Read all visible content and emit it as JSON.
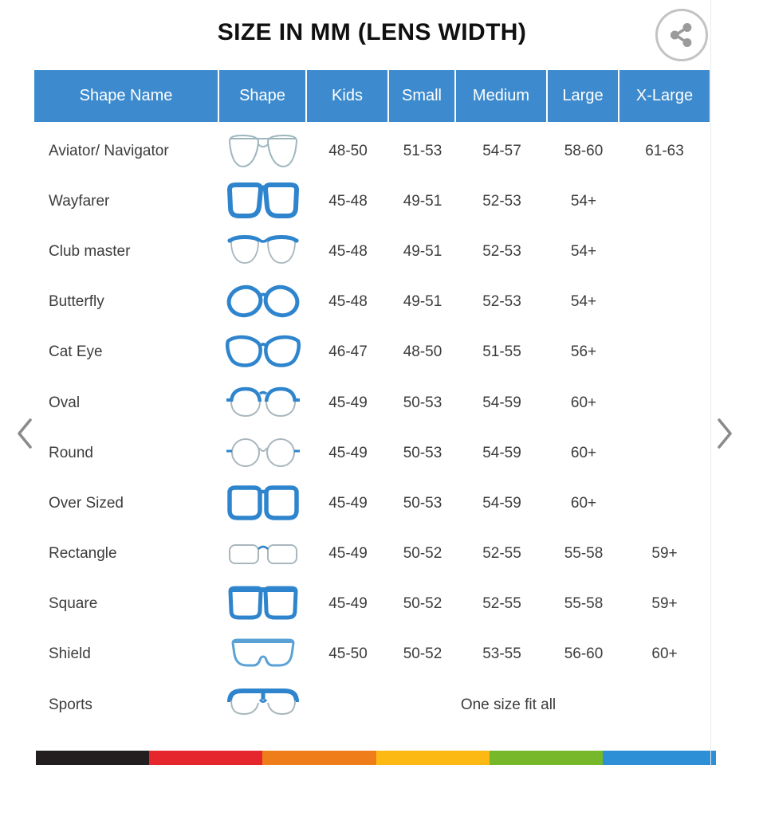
{
  "page": {
    "title": "SIZE IN MM (LENS WIDTH)"
  },
  "icons": {
    "share": "share-icon",
    "prev": "chevron-left-icon",
    "next": "chevron-right-icon"
  },
  "colors": {
    "header_bg": "#3d8bce",
    "header_text": "#ffffff",
    "frame_blue": "#2e85cd",
    "frame_light": "#a9b7bd",
    "stripe": [
      {
        "name": "black",
        "color": "#231f20"
      },
      {
        "name": "red",
        "color": "#e5262c"
      },
      {
        "name": "orange",
        "color": "#ef7d1a"
      },
      {
        "name": "yellow",
        "color": "#fdb913"
      },
      {
        "name": "green",
        "color": "#76b82a"
      },
      {
        "name": "blue",
        "color": "#2d8fd5"
      }
    ]
  },
  "table": {
    "columns": [
      "Shape Name",
      "Shape",
      "Kids",
      "Small",
      "Medium",
      "Large",
      "X-Large"
    ],
    "rows": [
      {
        "name": "Aviator/ Navigator",
        "icon": "aviator-glasses-icon",
        "kids": "48-50",
        "small": "51-53",
        "medium": "54-57",
        "large": "58-60",
        "xlarge": "61-63"
      },
      {
        "name": "Wayfarer",
        "icon": "wayfarer-glasses-icon",
        "kids": "45-48",
        "small": "49-51",
        "medium": "52-53",
        "large": "54+",
        "xlarge": ""
      },
      {
        "name": "Club master",
        "icon": "clubmaster-glasses-icon",
        "kids": "45-48",
        "small": "49-51",
        "medium": "52-53",
        "large": "54+",
        "xlarge": ""
      },
      {
        "name": "Butterfly",
        "icon": "butterfly-glasses-icon",
        "kids": "45-48",
        "small": "49-51",
        "medium": "52-53",
        "large": "54+",
        "xlarge": ""
      },
      {
        "name": "Cat Eye",
        "icon": "cateye-glasses-icon",
        "kids": "46-47",
        "small": "48-50",
        "medium": "51-55",
        "large": "56+",
        "xlarge": ""
      },
      {
        "name": "Oval",
        "icon": "oval-glasses-icon",
        "kids": "45-49",
        "small": "50-53",
        "medium": "54-59",
        "large": "60+",
        "xlarge": ""
      },
      {
        "name": "Round",
        "icon": "round-glasses-icon",
        "kids": "45-49",
        "small": "50-53",
        "medium": "54-59",
        "large": "60+",
        "xlarge": ""
      },
      {
        "name": "Over Sized",
        "icon": "oversized-glasses-icon",
        "kids": "45-49",
        "small": "50-53",
        "medium": "54-59",
        "large": "60+",
        "xlarge": ""
      },
      {
        "name": "Rectangle",
        "icon": "rectangle-glasses-icon",
        "kids": "45-49",
        "small": "50-52",
        "medium": "52-55",
        "large": "55-58",
        "xlarge": "59+"
      },
      {
        "name": "Square",
        "icon": "square-glasses-icon",
        "kids": "45-49",
        "small": "50-52",
        "medium": "52-55",
        "large": "55-58",
        "xlarge": "59+"
      },
      {
        "name": "Shield",
        "icon": "shield-glasses-icon",
        "kids": "45-50",
        "small": "50-52",
        "medium": "53-55",
        "large": "56-60",
        "xlarge": "60+"
      },
      {
        "name": "Sports",
        "icon": "sports-glasses-icon",
        "span_text": "One size fit all"
      }
    ]
  }
}
